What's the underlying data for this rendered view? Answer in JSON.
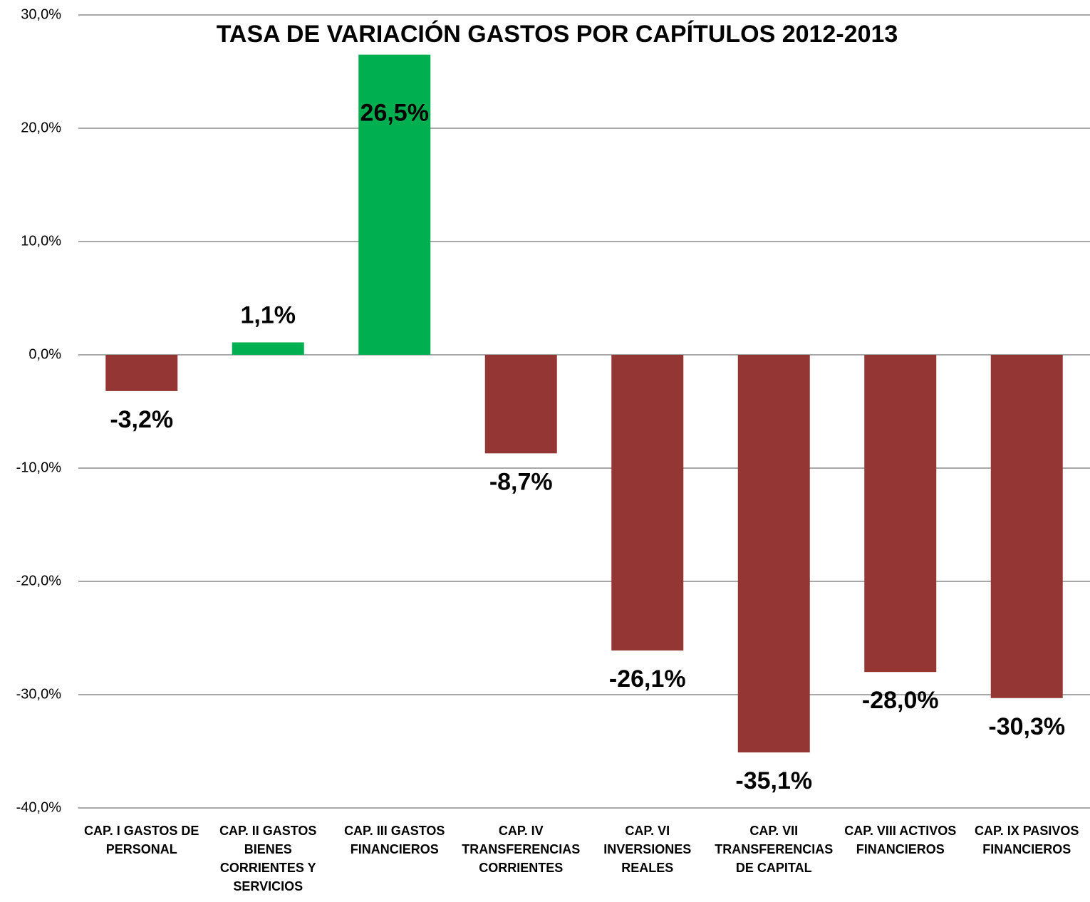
{
  "chart_data": {
    "type": "bar",
    "title": "TASA DE VARIACIÓN GASTOS POR CAPÍTULOS 2012-2013",
    "categories": [
      "CAP. I GASTOS DE PERSONAL",
      "CAP. II GASTOS BIENES CORRIENTES Y SERVICIOS",
      "CAP. III GASTOS FINANCIEROS",
      "CAP. IV TRANSFERENCIAS CORRIENTES",
      "CAP. VI INVERSIONES REALES",
      "CAP. VII TRANSFERENCIAS DE CAPITAL",
      "CAP. VIII ACTIVOS FINANCIEROS",
      "CAP. IX PASIVOS FINANCIEROS"
    ],
    "values": [
      -3.2,
      1.1,
      26.5,
      -8.7,
      -26.1,
      -35.1,
      -28.0,
      -30.3
    ],
    "value_labels": [
      "-3,2%",
      "1,1%",
      "26,5%",
      "-8,7%",
      "-26,1%",
      "-35,1%",
      "-28,0%",
      "-30,3%"
    ],
    "colors": [
      "#943634",
      "#00b050",
      "#00b050",
      "#943634",
      "#943634",
      "#943634",
      "#943634",
      "#943634"
    ],
    "ylim": [
      -40,
      30
    ],
    "yticks": [
      {
        "value": -40,
        "label": "-40,0%"
      },
      {
        "value": -30,
        "label": "-30,0%"
      },
      {
        "value": -20,
        "label": "-20,0%"
      },
      {
        "value": -10,
        "label": "-10,0%"
      },
      {
        "value": 0,
        "label": "0,0%"
      },
      {
        "value": 10,
        "label": "10,0%"
      },
      {
        "value": 20,
        "label": "20,0%"
      },
      {
        "value": 30,
        "label": "30,0%"
      }
    ],
    "grid": true
  }
}
